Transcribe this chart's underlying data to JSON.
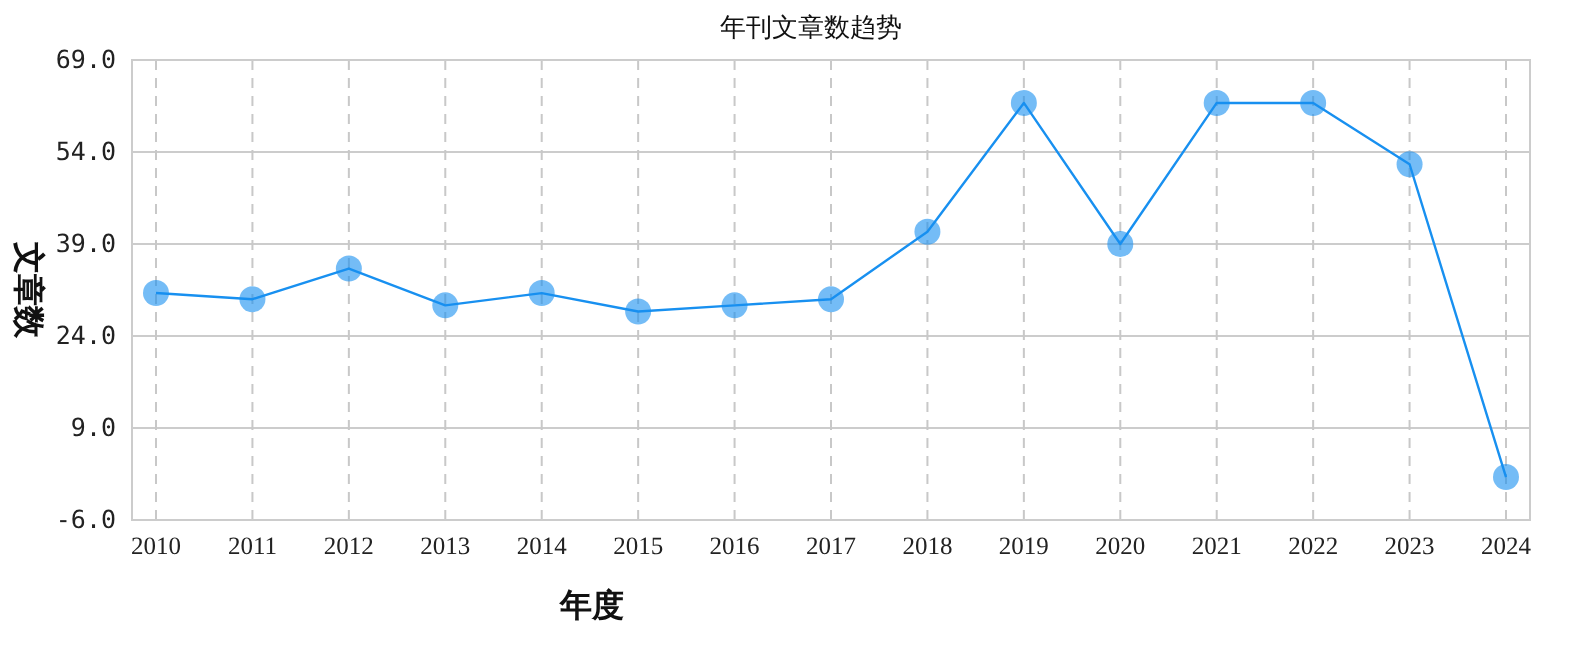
{
  "chart_data": {
    "type": "line",
    "title": "年刊文章数趋势",
    "xlabel": "年度",
    "ylabel": "文章数",
    "categories": [
      "2010",
      "2011",
      "2012",
      "2013",
      "2014",
      "2015",
      "2016",
      "2017",
      "2018",
      "2019",
      "2020",
      "2021",
      "2022",
      "2023",
      "2024"
    ],
    "series": [
      {
        "color": "#1890f0",
        "values": [
          31,
          30,
          35,
          29,
          31,
          28,
          29,
          30,
          41,
          62,
          39,
          62,
          62,
          52,
          1
        ]
      }
    ],
    "ylim": [
      -6,
      69
    ],
    "yticks": [
      {
        "value": -6,
        "label": "-6.0"
      },
      {
        "value": 9,
        "label": "9.0"
      },
      {
        "value": 24,
        "label": "24.0"
      },
      {
        "value": 39,
        "label": "39.0"
      },
      {
        "value": 54,
        "label": "54.0"
      },
      {
        "value": 69,
        "label": "69.0"
      }
    ],
    "grid": true,
    "marker": "circle"
  }
}
